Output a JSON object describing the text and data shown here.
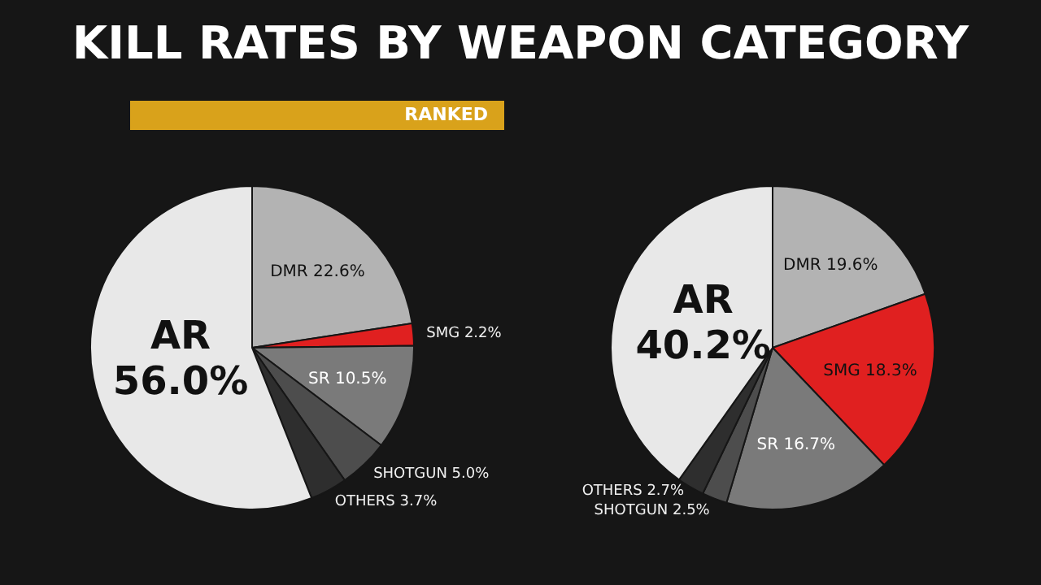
{
  "chart_data": [
    {
      "type": "pie",
      "title": "KILL RATES BY WEAPON CATEGORY",
      "subtitle": "RANKED",
      "categories": [
        "DMR",
        "SMG",
        "SR",
        "SHOTGUN",
        "OTHERS",
        "AR"
      ],
      "values": [
        22.6,
        2.2,
        10.5,
        5.0,
        3.7,
        56.0
      ],
      "value_labels": [
        "22.6%",
        "2.2%",
        "10.5%",
        "5.0%",
        "3.7%",
        "56.0%"
      ],
      "colors": [
        "#b3b3b3",
        "#e02020",
        "#7a7a7a",
        "#4d4d4d",
        "#2e2e2e",
        "#e8e8e8"
      ],
      "legend": false
    },
    {
      "type": "pie",
      "categories": [
        "DMR",
        "SMG",
        "SR",
        "SHOTGUN",
        "OTHERS",
        "AR"
      ],
      "values": [
        19.6,
        18.3,
        16.7,
        2.5,
        2.7,
        40.2
      ],
      "value_labels": [
        "19.6%",
        "18.3%",
        "16.7%",
        "2.5%",
        "2.7%",
        "40.2%"
      ],
      "colors": [
        "#b3b3b3",
        "#e02020",
        "#7a7a7a",
        "#4d4d4d",
        "#2e2e2e",
        "#e8e8e8"
      ],
      "legend": false
    }
  ]
}
